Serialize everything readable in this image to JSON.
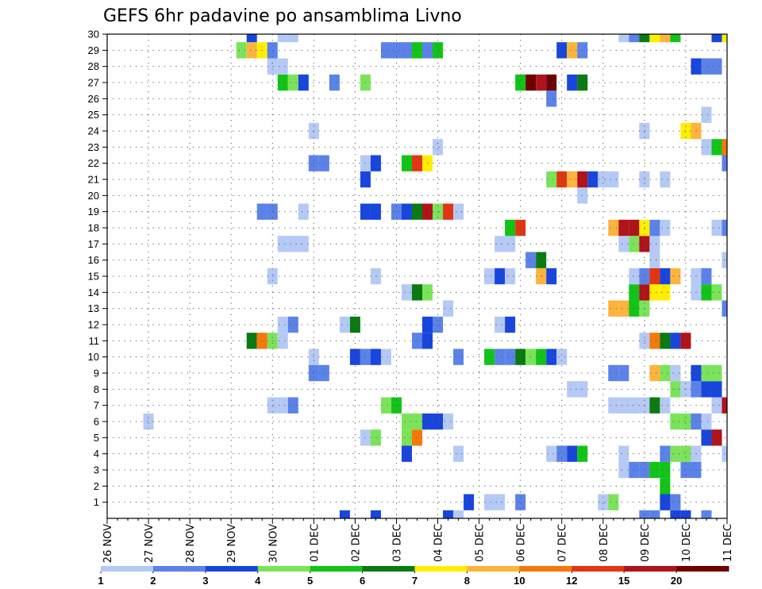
{
  "chart_data": {
    "type": "heatmap",
    "title": "GEFS 6hr padavine po ansamblima Livno",
    "members": [
      1,
      2,
      3,
      4,
      5,
      6,
      7,
      8,
      9,
      10,
      11,
      12,
      13,
      14,
      15,
      16,
      17,
      18,
      19,
      20,
      21,
      22,
      23,
      24,
      25,
      26,
      27,
      28,
      29,
      30
    ],
    "x_labels": [
      "26 NOV",
      "27 NOV",
      "28 NOV",
      "29 NOV",
      "30 NOV",
      "01 DEC",
      "02 DEC",
      "03 DEC",
      "04 DEC",
      "05 DEC",
      "06 DEC",
      "07 DEC",
      "08 DEC",
      "09 DEC",
      "10 DEC",
      "11 DEC"
    ],
    "steps_per_day": 4,
    "total_steps": 61,
    "grid": true,
    "legend_placement": "bottom",
    "legend_labels": [
      "1",
      "2",
      "3",
      "4",
      "5",
      "6",
      "7",
      "8",
      "10",
      "12",
      "15",
      "20"
    ],
    "legend_colors": [
      "#b5c9f5",
      "#5b82e8",
      "#1846dd",
      "#7be35a",
      "#12c318",
      "#0a7a12",
      "#ffee00",
      "#fdb43c",
      "#f7780a",
      "#e23512",
      "#b0131a",
      "#6e0000"
    ],
    "cells": [
      [
        0,
        23,
        3
      ],
      [
        0,
        26,
        3
      ],
      [
        0,
        33,
        3
      ],
      [
        0,
        34,
        1
      ],
      [
        0,
        52,
        2
      ],
      [
        0,
        53,
        2
      ],
      [
        0,
        55,
        3
      ],
      [
        0,
        56,
        3
      ],
      [
        0,
        58,
        2
      ],
      [
        1,
        35,
        3
      ],
      [
        1,
        37,
        1
      ],
      [
        1,
        38,
        1
      ],
      [
        1,
        40,
        2
      ],
      [
        1,
        48,
        1
      ],
      [
        1,
        49,
        4
      ],
      [
        1,
        54,
        3
      ],
      [
        1,
        55,
        2
      ],
      [
        2,
        54,
        5
      ],
      [
        3,
        50,
        1
      ],
      [
        3,
        51,
        2
      ],
      [
        3,
        52,
        2
      ],
      [
        3,
        53,
        5
      ],
      [
        3,
        54,
        5
      ],
      [
        3,
        56,
        2
      ],
      [
        3,
        57,
        2
      ],
      [
        4,
        29,
        3
      ],
      [
        4,
        34,
        1
      ],
      [
        4,
        43,
        1
      ],
      [
        4,
        44,
        2
      ],
      [
        4,
        45,
        3
      ],
      [
        4,
        46,
        5
      ],
      [
        4,
        50,
        1
      ],
      [
        4,
        54,
        2
      ],
      [
        4,
        55,
        4
      ],
      [
        4,
        56,
        4
      ],
      [
        4,
        57,
        1
      ],
      [
        4,
        60,
        1
      ],
      [
        5,
        25,
        1
      ],
      [
        5,
        26,
        4
      ],
      [
        5,
        29,
        4
      ],
      [
        5,
        30,
        9
      ],
      [
        5,
        58,
        3
      ],
      [
        5,
        59,
        11
      ],
      [
        6,
        4,
        1
      ],
      [
        6,
        29,
        4
      ],
      [
        6,
        30,
        4
      ],
      [
        6,
        31,
        3
      ],
      [
        6,
        32,
        3
      ],
      [
        6,
        33,
        1
      ],
      [
        6,
        55,
        4
      ],
      [
        6,
        56,
        4
      ],
      [
        6,
        57,
        2
      ],
      [
        6,
        58,
        1
      ],
      [
        7,
        16,
        1
      ],
      [
        7,
        17,
        1
      ],
      [
        7,
        18,
        2
      ],
      [
        7,
        27,
        4
      ],
      [
        7,
        28,
        5
      ],
      [
        7,
        49,
        1
      ],
      [
        7,
        50,
        1
      ],
      [
        7,
        51,
        1
      ],
      [
        7,
        52,
        1
      ],
      [
        7,
        53,
        6
      ],
      [
        7,
        54,
        1
      ],
      [
        7,
        59,
        1
      ],
      [
        7,
        60,
        11
      ],
      [
        8,
        45,
        1
      ],
      [
        8,
        46,
        1
      ],
      [
        8,
        55,
        4
      ],
      [
        8,
        56,
        1
      ],
      [
        8,
        57,
        2
      ],
      [
        8,
        58,
        3
      ],
      [
        8,
        59,
        3
      ],
      [
        9,
        20,
        2
      ],
      [
        9,
        21,
        2
      ],
      [
        9,
        49,
        2
      ],
      [
        9,
        50,
        2
      ],
      [
        9,
        53,
        8
      ],
      [
        9,
        54,
        4
      ],
      [
        9,
        55,
        1
      ],
      [
        9,
        57,
        3
      ],
      [
        9,
        58,
        4
      ],
      [
        9,
        59,
        4
      ],
      [
        10,
        20,
        1
      ],
      [
        10,
        24,
        3
      ],
      [
        10,
        25,
        2
      ],
      [
        10,
        26,
        3
      ],
      [
        10,
        27,
        1
      ],
      [
        10,
        34,
        2
      ],
      [
        10,
        37,
        5
      ],
      [
        10,
        38,
        2
      ],
      [
        10,
        39,
        2
      ],
      [
        10,
        40,
        6
      ],
      [
        10,
        41,
        4
      ],
      [
        10,
        42,
        5
      ],
      [
        10,
        43,
        3
      ],
      [
        10,
        44,
        1
      ],
      [
        11,
        14,
        6
      ],
      [
        11,
        15,
        9
      ],
      [
        11,
        16,
        4
      ],
      [
        11,
        17,
        1
      ],
      [
        11,
        30,
        2
      ],
      [
        11,
        31,
        3
      ],
      [
        11,
        52,
        1
      ],
      [
        11,
        53,
        9
      ],
      [
        11,
        54,
        6
      ],
      [
        11,
        55,
        3
      ],
      [
        11,
        56,
        11
      ],
      [
        12,
        17,
        1
      ],
      [
        12,
        18,
        2
      ],
      [
        12,
        23,
        1
      ],
      [
        12,
        24,
        6
      ],
      [
        12,
        31,
        3
      ],
      [
        12,
        32,
        2
      ],
      [
        12,
        38,
        1
      ],
      [
        12,
        39,
        3
      ],
      [
        13,
        33,
        1
      ],
      [
        13,
        49,
        8
      ],
      [
        13,
        50,
        8
      ],
      [
        13,
        51,
        5
      ],
      [
        13,
        52,
        4
      ],
      [
        13,
        60,
        2
      ],
      [
        14,
        29,
        1
      ],
      [
        14,
        30,
        6
      ],
      [
        14,
        31,
        4
      ],
      [
        14,
        51,
        5
      ],
      [
        14,
        52,
        11
      ],
      [
        14,
        53,
        7
      ],
      [
        14,
        54,
        7
      ],
      [
        14,
        57,
        1
      ],
      [
        14,
        58,
        5
      ],
      [
        14,
        59,
        4
      ],
      [
        15,
        16,
        1
      ],
      [
        15,
        26,
        1
      ],
      [
        15,
        37,
        1
      ],
      [
        15,
        38,
        3
      ],
      [
        15,
        39,
        1
      ],
      [
        15,
        42,
        8
      ],
      [
        15,
        43,
        3
      ],
      [
        15,
        51,
        1
      ],
      [
        15,
        52,
        2
      ],
      [
        15,
        53,
        10
      ],
      [
        15,
        54,
        3
      ],
      [
        15,
        55,
        8
      ],
      [
        15,
        57,
        1
      ],
      [
        15,
        58,
        2
      ],
      [
        16,
        41,
        2
      ],
      [
        16,
        42,
        6
      ],
      [
        16,
        53,
        1
      ],
      [
        16,
        60,
        1
      ],
      [
        17,
        17,
        1
      ],
      [
        17,
        18,
        1
      ],
      [
        17,
        19,
        1
      ],
      [
        17,
        38,
        1
      ],
      [
        17,
        39,
        1
      ],
      [
        17,
        50,
        1
      ],
      [
        17,
        51,
        4
      ],
      [
        17,
        52,
        11
      ],
      [
        17,
        53,
        1
      ],
      [
        18,
        39,
        5
      ],
      [
        18,
        40,
        10
      ],
      [
        18,
        49,
        8
      ],
      [
        18,
        50,
        11
      ],
      [
        18,
        51,
        11
      ],
      [
        18,
        52,
        7
      ],
      [
        18,
        53,
        2
      ],
      [
        18,
        54,
        1
      ],
      [
        18,
        59,
        1
      ],
      [
        18,
        60,
        2
      ],
      [
        19,
        15,
        2
      ],
      [
        19,
        16,
        2
      ],
      [
        19,
        19,
        1
      ],
      [
        19,
        25,
        3
      ],
      [
        19,
        26,
        3
      ],
      [
        19,
        28,
        2
      ],
      [
        19,
        29,
        3
      ],
      [
        19,
        30,
        6
      ],
      [
        19,
        31,
        11
      ],
      [
        19,
        32,
        4
      ],
      [
        19,
        33,
        10
      ],
      [
        19,
        34,
        1
      ],
      [
        20,
        46,
        1
      ],
      [
        21,
        25,
        3
      ],
      [
        21,
        43,
        4
      ],
      [
        21,
        44,
        10
      ],
      [
        21,
        45,
        8
      ],
      [
        21,
        46,
        11
      ],
      [
        21,
        47,
        3
      ],
      [
        21,
        48,
        1
      ],
      [
        21,
        49,
        1
      ],
      [
        21,
        52,
        1
      ],
      [
        21,
        54,
        1
      ],
      [
        22,
        20,
        2
      ],
      [
        22,
        21,
        2
      ],
      [
        22,
        25,
        1
      ],
      [
        22,
        26,
        3
      ],
      [
        22,
        29,
        5
      ],
      [
        22,
        30,
        10
      ],
      [
        22,
        31,
        7
      ],
      [
        22,
        60,
        2
      ],
      [
        23,
        32,
        1
      ],
      [
        23,
        58,
        1
      ],
      [
        23,
        59,
        5
      ],
      [
        23,
        60,
        9
      ],
      [
        24,
        20,
        1
      ],
      [
        24,
        52,
        1
      ],
      [
        24,
        56,
        7
      ],
      [
        24,
        57,
        8
      ],
      [
        25,
        58,
        1
      ],
      [
        26,
        43,
        2
      ],
      [
        27,
        17,
        5
      ],
      [
        27,
        18,
        4
      ],
      [
        27,
        19,
        3
      ],
      [
        27,
        22,
        2
      ],
      [
        27,
        25,
        4
      ],
      [
        27,
        40,
        5
      ],
      [
        27,
        41,
        12
      ],
      [
        27,
        42,
        11
      ],
      [
        27,
        43,
        12
      ],
      [
        27,
        45,
        3
      ],
      [
        27,
        46,
        6
      ],
      [
        28,
        16,
        1
      ],
      [
        28,
        17,
        1
      ],
      [
        28,
        57,
        3
      ],
      [
        28,
        58,
        2
      ],
      [
        28,
        59,
        2
      ],
      [
        29,
        13,
        4
      ],
      [
        29,
        14,
        8
      ],
      [
        29,
        15,
        7
      ],
      [
        29,
        16,
        2
      ],
      [
        29,
        27,
        2
      ],
      [
        29,
        28,
        2
      ],
      [
        29,
        29,
        2
      ],
      [
        29,
        30,
        5
      ],
      [
        29,
        31,
        2
      ],
      [
        29,
        32,
        5
      ],
      [
        29,
        44,
        3
      ],
      [
        29,
        45,
        8
      ],
      [
        29,
        46,
        2
      ],
      [
        30,
        14,
        3
      ],
      [
        30,
        17,
        1
      ],
      [
        30,
        18,
        1
      ],
      [
        30,
        50,
        1
      ],
      [
        30,
        51,
        2
      ],
      [
        30,
        52,
        6
      ],
      [
        30,
        53,
        7
      ],
      [
        30,
        54,
        8
      ],
      [
        30,
        55,
        5
      ],
      [
        30,
        59,
        3
      ],
      [
        30,
        60,
        7
      ]
    ]
  }
}
